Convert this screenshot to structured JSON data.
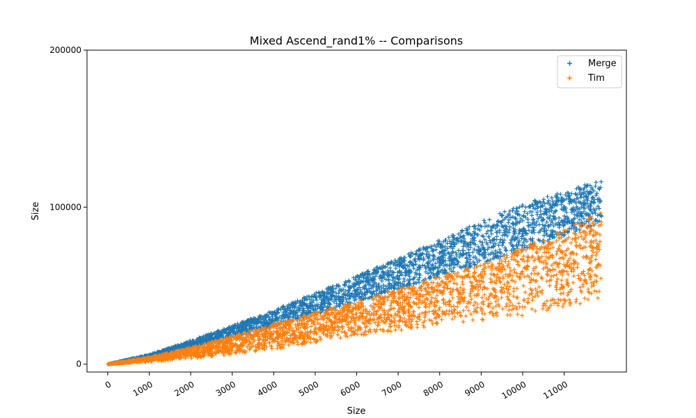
{
  "chart_data": {
    "type": "scatter",
    "title": "Mixed Ascend_rand1% -- Comparisons",
    "xlabel": "Size",
    "ylabel": "Size",
    "xlim": [
      -500,
      12500
    ],
    "ylim": [
      -5000,
      200000
    ],
    "xticks": [
      0,
      1000,
      2000,
      3000,
      4000,
      5000,
      6000,
      7000,
      8000,
      9000,
      10000,
      11000
    ],
    "xtick_labels": [
      "0",
      "1000",
      "2000",
      "3000",
      "4000",
      "5000",
      "6000",
      "7000",
      "8000",
      "9000",
      "10000",
      "11000"
    ],
    "yticks": [
      0,
      100000,
      200000
    ],
    "ytick_labels": [
      "0",
      "100000",
      "200000"
    ],
    "marker": "+",
    "legend_position": "top-right",
    "x_range_of_points": [
      0,
      11900
    ],
    "series": [
      {
        "name": "Merge",
        "color": "#1f77b4",
        "trend": {
          "x": [
            0,
            1000,
            2000,
            3000,
            4000,
            5000,
            6000,
            7000,
            8000,
            9000,
            10000,
            11000,
            11900
          ],
          "upper": [
            0,
            6000,
            15000,
            24500,
            34500,
            45500,
            56000,
            67500,
            79000,
            91000,
            102000,
            110000,
            118000
          ],
          "lower": [
            0,
            4500,
            10500,
            17000,
            24000,
            31500,
            39500,
            48000,
            56000,
            64000,
            72000,
            82000,
            90000
          ]
        }
      },
      {
        "name": "Tim",
        "color": "#ff7f0e",
        "trend": {
          "x": [
            0,
            1000,
            2000,
            3000,
            4000,
            5000,
            6000,
            7000,
            8000,
            9000,
            10000,
            11000,
            11900
          ],
          "upper": [
            0,
            4500,
            10500,
            18000,
            25500,
            33000,
            40000,
            48000,
            56000,
            64000,
            74000,
            86000,
            97000
          ],
          "lower": [
            0,
            1500,
            3500,
            6000,
            9500,
            13500,
            17500,
            21000,
            25000,
            28000,
            31000,
            35000,
            42000
          ]
        }
      }
    ]
  }
}
